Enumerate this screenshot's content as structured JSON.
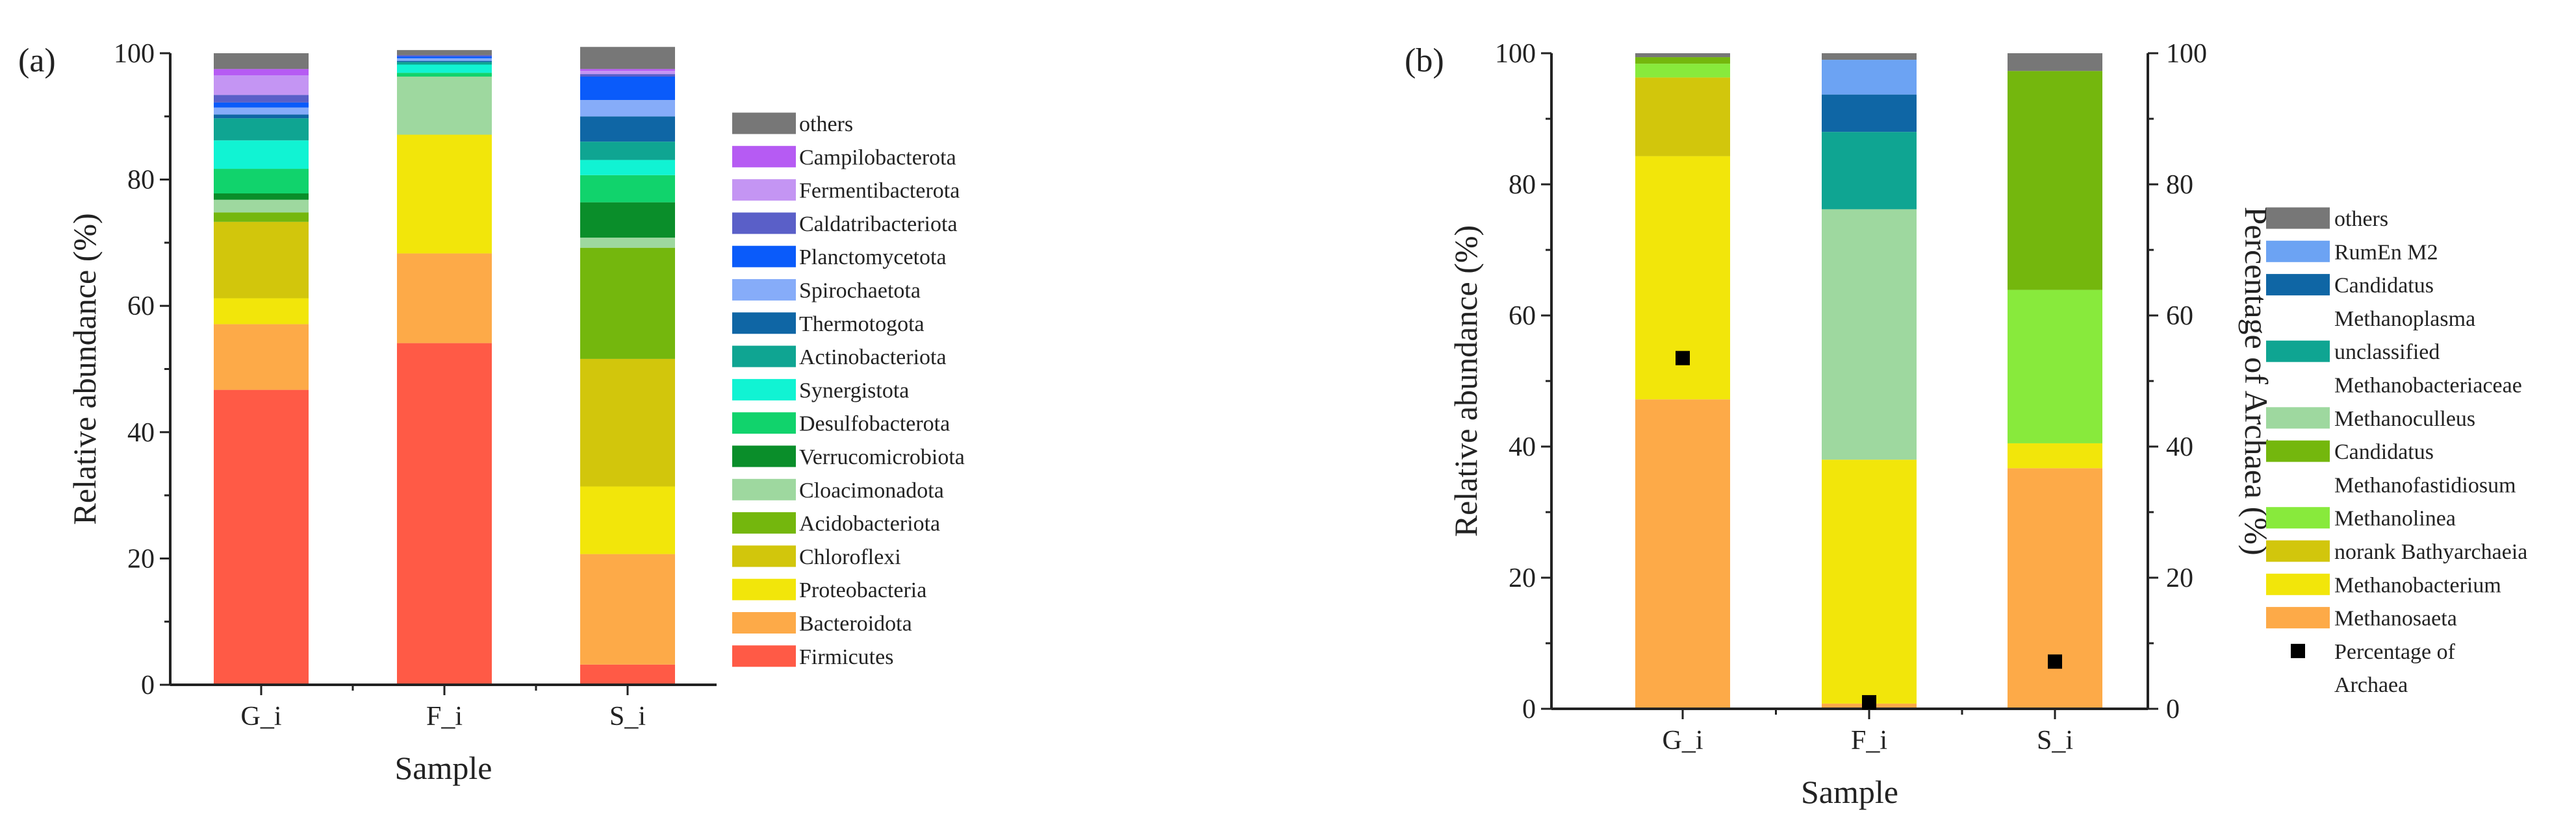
{
  "chart_data": [
    {
      "panel": "(a)",
      "type": "bar",
      "stacked": true,
      "xlabel": "Sample",
      "ylabel": "Relative abundance (%)",
      "ylim": [
        0,
        100
      ],
      "yticks": [
        0,
        20,
        40,
        60,
        80,
        100
      ],
      "categories": [
        "G_i",
        "F_i",
        "S_i"
      ],
      "legend_position": "right",
      "series": [
        {
          "name": "Firmicutes",
          "color": "#FF5A46",
          "values": [
            46.7,
            54.1,
            3.2
          ]
        },
        {
          "name": "Bacteroidota",
          "color": "#FDAA48",
          "values": [
            10.4,
            14.2,
            17.5
          ]
        },
        {
          "name": "Proteobacteria",
          "color": "#F2E60A",
          "values": [
            4.1,
            18.8,
            10.7
          ]
        },
        {
          "name": "Chloroflexi",
          "color": "#D2C60C",
          "values": [
            12.1,
            0.0,
            20.2
          ]
        },
        {
          "name": "Acidobacteriota",
          "color": "#74B70D",
          "values": [
            1.5,
            0.0,
            17.6
          ]
        },
        {
          "name": "Cloacimonadota",
          "color": "#9ED89F",
          "values": [
            2.0,
            9.2,
            1.6
          ]
        },
        {
          "name": "Verrucomicrobiota",
          "color": "#0A8E2A",
          "values": [
            1.0,
            0.0,
            5.6
          ]
        },
        {
          "name": "Desulfobacterota",
          "color": "#11D36C",
          "values": [
            3.9,
            0.6,
            4.3
          ]
        },
        {
          "name": "Synergistota",
          "color": "#11F3D3",
          "values": [
            4.5,
            1.3,
            2.4
          ]
        },
        {
          "name": "Actinobacteriota",
          "color": "#0FA592",
          "values": [
            3.5,
            0.4,
            2.9
          ]
        },
        {
          "name": "Thermotogota",
          "color": "#0F66A5",
          "values": [
            0.6,
            0.2,
            4.0
          ]
        },
        {
          "name": "Spirochaetota",
          "color": "#86ACF9",
          "values": [
            1.1,
            0.4,
            2.6
          ]
        },
        {
          "name": "Planctomycetota",
          "color": "#0A5BFA",
          "values": [
            0.8,
            0.3,
            3.7
          ]
        },
        {
          "name": "Caldatribacteriota",
          "color": "#5A5FC8",
          "values": [
            1.2,
            0.2,
            0.4
          ]
        },
        {
          "name": "Fermentibacterota",
          "color": "#C495F3",
          "values": [
            3.1,
            0.0,
            0.5
          ]
        },
        {
          "name": "Campilobacterota",
          "color": "#B65BF3",
          "values": [
            1.0,
            0.0,
            0.3
          ]
        },
        {
          "name": "others",
          "color": "#777777",
          "values": [
            2.5,
            0.8,
            3.5
          ]
        }
      ]
    },
    {
      "panel": "(b)",
      "type": "bar",
      "stacked": true,
      "xlabel": "Sample",
      "ylabel": "Relative abundance (%)",
      "y2label": "Percentage of Archaea (%)",
      "ylim": [
        0,
        100
      ],
      "y2lim": [
        0,
        100
      ],
      "yticks": [
        0,
        20,
        40,
        60,
        80,
        100
      ],
      "categories": [
        "G_i",
        "F_i",
        "S_i"
      ],
      "legend_position": "right",
      "series": [
        {
          "name": "Methanosaeta",
          "color": "#FDAA48",
          "values": [
            47.2,
            0.8,
            36.7
          ]
        },
        {
          "name": "Methanobacterium",
          "color": "#F2E60A",
          "values": [
            37.1,
            37.2,
            3.8
          ]
        },
        {
          "name": "norank Bathyarchaeia",
          "color": "#D2C60C",
          "values": [
            12.0,
            0.0,
            0.0
          ]
        },
        {
          "name": "Methanolinea",
          "color": "#88EA3C",
          "values": [
            2.1,
            0.0,
            23.4
          ]
        },
        {
          "name": "Candidatus Methanofastidiosum",
          "color": "#74B70D",
          "values": [
            1.0,
            0.0,
            33.4
          ]
        },
        {
          "name": "Methanoculleus",
          "color": "#9ED89F",
          "values": [
            0.0,
            38.2,
            0.0
          ]
        },
        {
          "name": "unclassified Methanobacteriaceae",
          "color": "#0FA592",
          "values": [
            0.0,
            11.8,
            0.0
          ]
        },
        {
          "name": "Candidatus Methanoplasma",
          "color": "#0F66A5",
          "values": [
            0.0,
            5.7,
            0.0
          ]
        },
        {
          "name": "RumEn M2",
          "color": "#6CA3F3",
          "values": [
            0.0,
            5.3,
            0.0
          ]
        },
        {
          "name": "others",
          "color": "#777777",
          "values": [
            0.6,
            1.0,
            2.7
          ]
        }
      ],
      "scatter": {
        "name": "Percentage of Archaea",
        "color": "#000000",
        "marker": "square",
        "axis": "right",
        "values": [
          53.5,
          1.0,
          7.2
        ]
      }
    }
  ]
}
